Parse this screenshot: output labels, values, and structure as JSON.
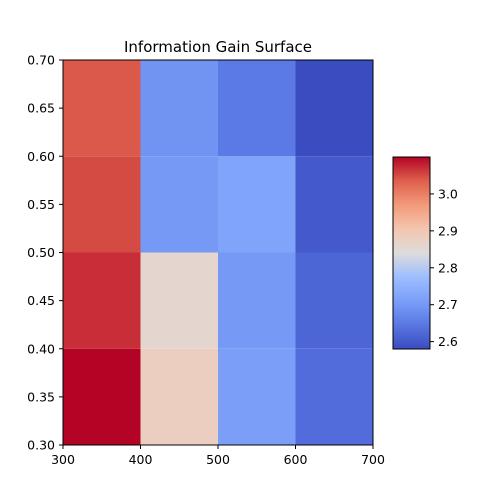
{
  "chart_data": {
    "type": "heatmap",
    "title": "Information Gain Surface",
    "xlabel": "",
    "ylabel": "",
    "x_edges": [
      300,
      400,
      500,
      600,
      700
    ],
    "y_edges": [
      0.3,
      0.4,
      0.5,
      0.6,
      0.7
    ],
    "x_ticks": [
      "300",
      "400",
      "500",
      "600",
      "700"
    ],
    "y_ticks": [
      "0.30",
      "0.35",
      "0.40",
      "0.45",
      "0.50",
      "0.55",
      "0.60",
      "0.65",
      "0.70"
    ],
    "values_rows_bottom_to_top": [
      [
        3.1,
        2.88,
        2.71,
        2.63
      ],
      [
        3.07,
        2.86,
        2.7,
        2.62
      ],
      [
        3.05,
        2.7,
        2.72,
        2.6
      ],
      [
        3.04,
        2.69,
        2.65,
        2.58
      ]
    ],
    "colormap": "coolwarm",
    "color_range": [
      2.58,
      3.1
    ],
    "colorbar_ticks": [
      "2.6",
      "2.7",
      "2.8",
      "2.9",
      "3.0"
    ],
    "colorbar_tick_values": [
      2.6,
      2.7,
      2.8,
      2.9,
      3.0
    ],
    "grid": false,
    "colorbar_placement": "right"
  }
}
